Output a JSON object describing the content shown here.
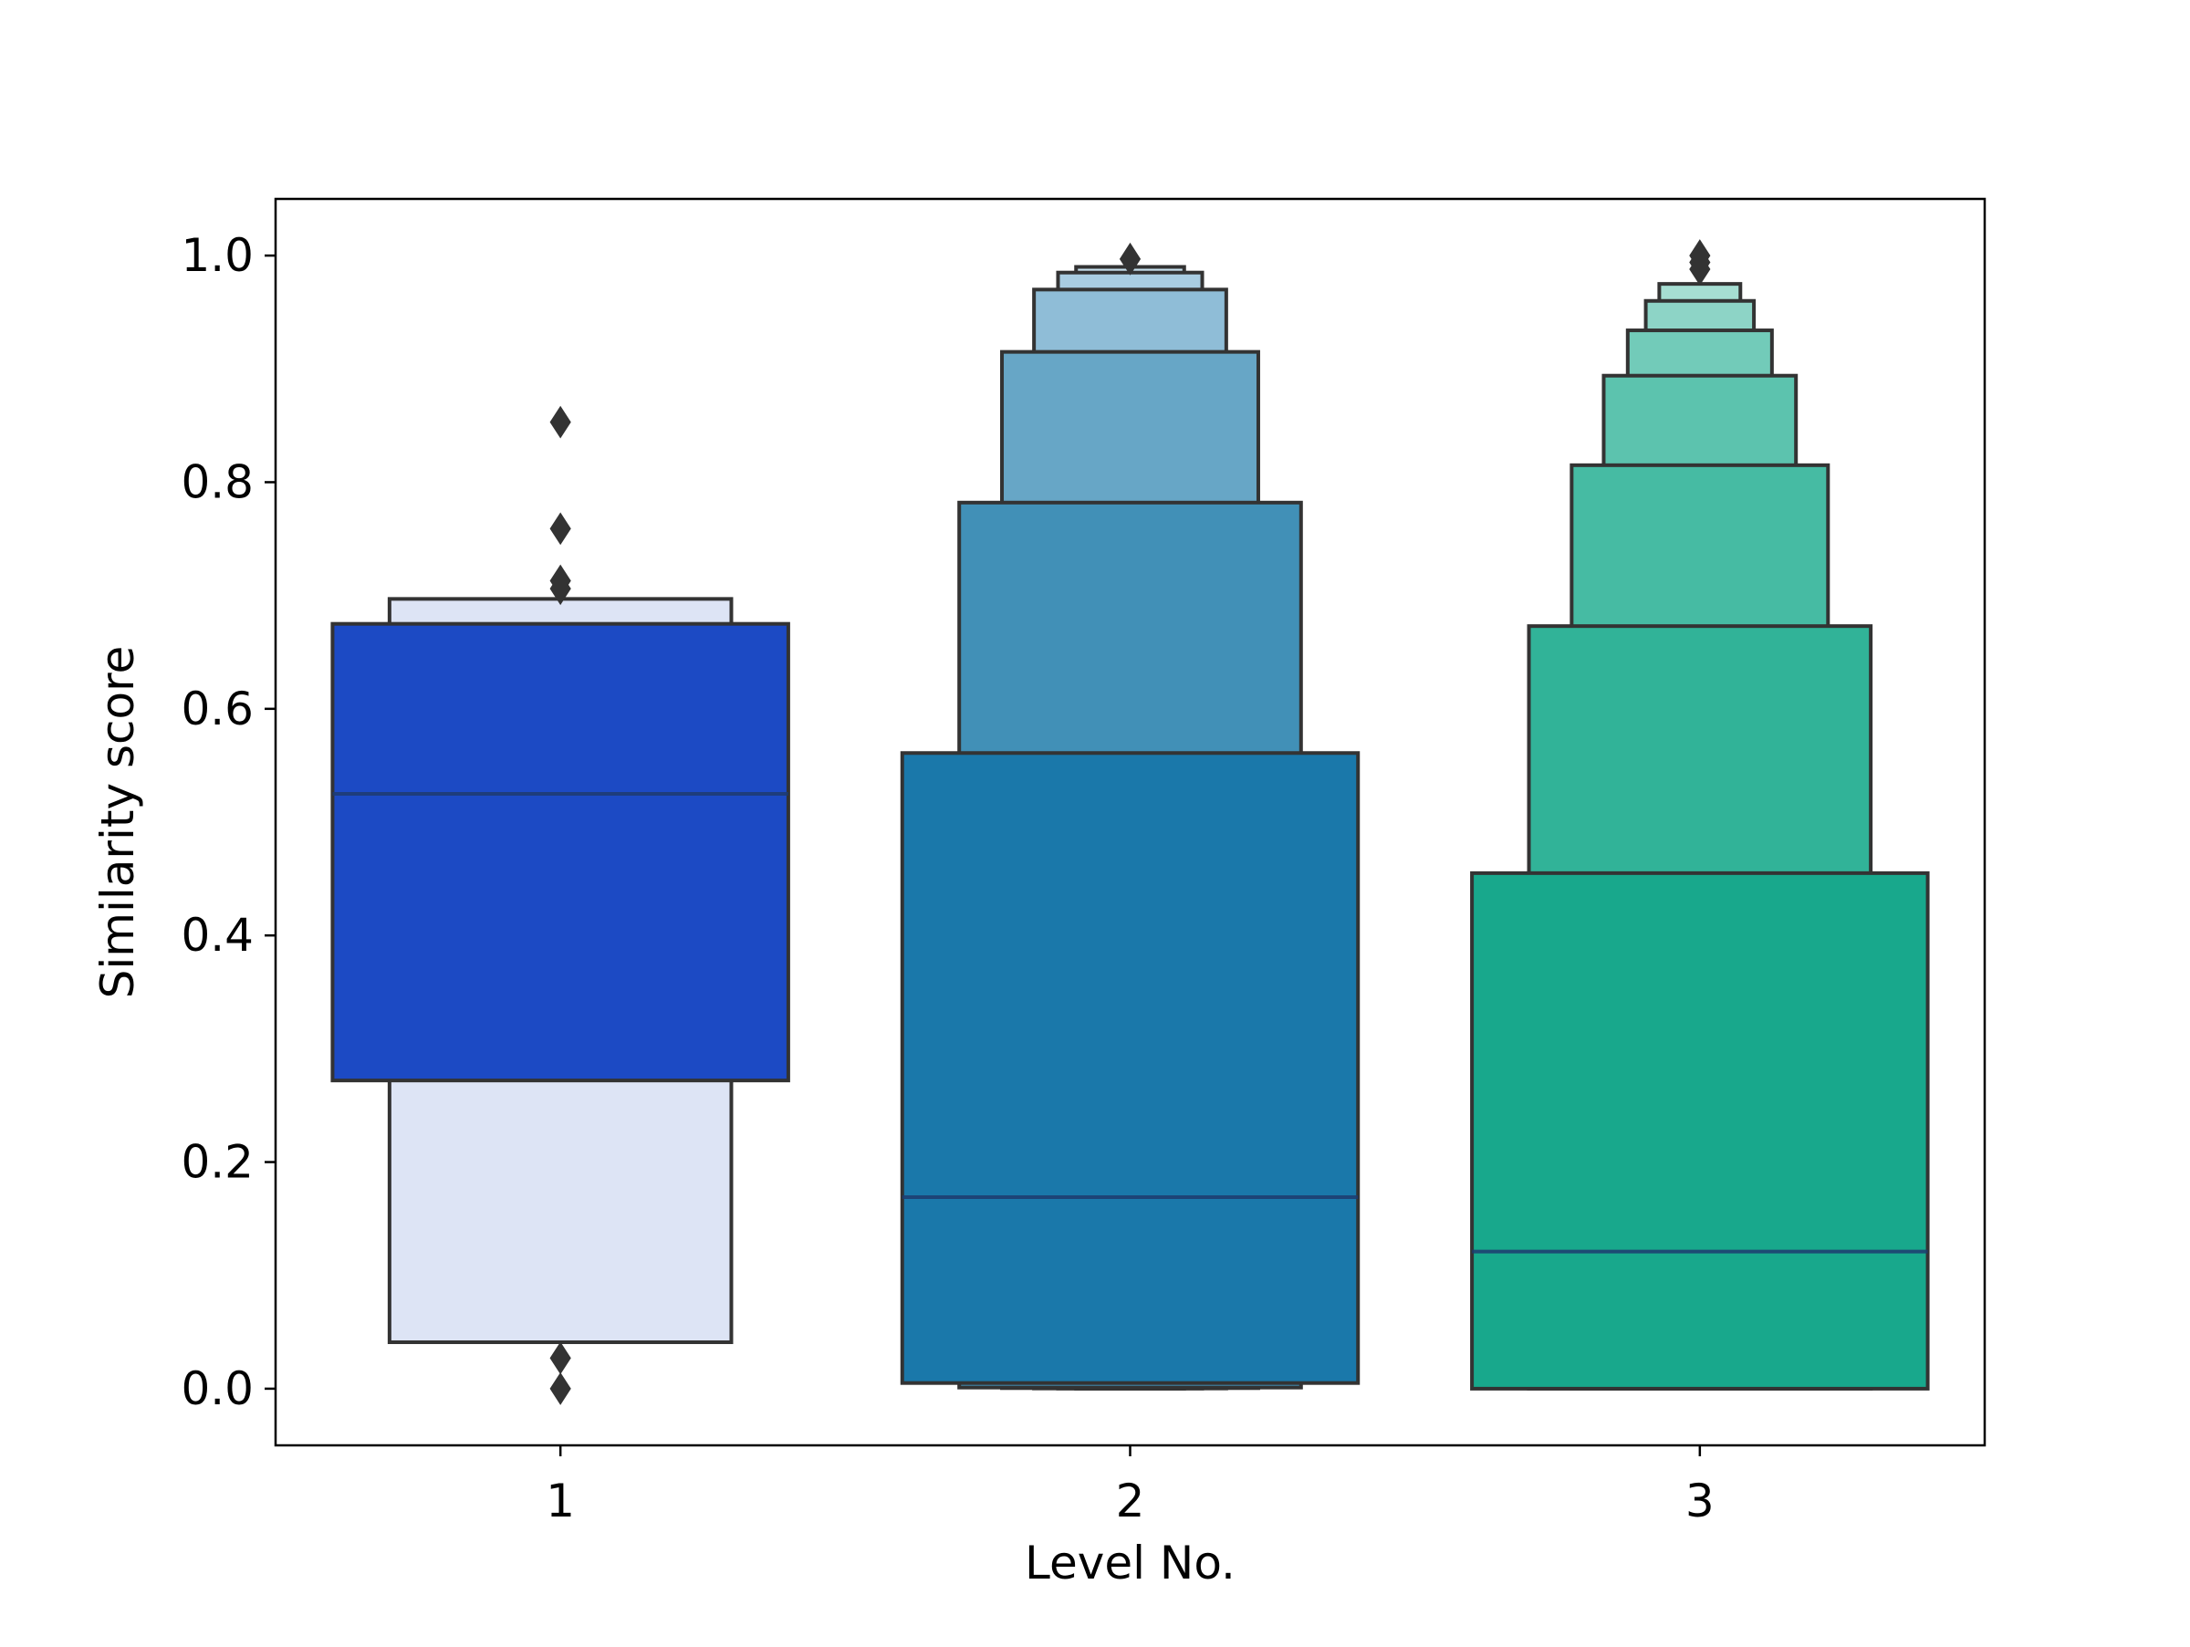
{
  "chart_data": {
    "type": "boxen",
    "title": "",
    "xlabel": "Level No.",
    "ylabel": "Similarity score",
    "categories": [
      "1",
      "2",
      "3"
    ],
    "ylim": [
      -0.05,
      1.05
    ],
    "yticks": [
      0.0,
      0.2,
      0.4,
      0.6,
      0.8,
      1.0
    ],
    "ytick_labels": [
      "0.0",
      "0.2",
      "0.4",
      "0.6",
      "0.8",
      "1.0"
    ],
    "grid": false,
    "legend": "none",
    "series": [
      {
        "category": "1",
        "color": "#1c4ac4",
        "median": 0.525,
        "boxes": [
          {
            "low": 0.272,
            "high": 0.675,
            "color": "#1c4ac4"
          },
          {
            "low": 0.041,
            "high": 0.697,
            "color": "#dde4f5"
          }
        ],
        "outliers": [
          0.853,
          0.759,
          0.713,
          0.706,
          0.027,
          0.0
        ]
      },
      {
        "category": "2",
        "color": "#1a78aa",
        "median": 0.169,
        "boxes": [
          {
            "low": 0.005,
            "high": 0.561,
            "color": "#1a78aa"
          },
          {
            "low": 0.001,
            "high": 0.782,
            "color": "#4190b7"
          },
          {
            "low": 0.0005,
            "high": 0.915,
            "color": "#67a6c6"
          },
          {
            "low": 0.0002,
            "high": 0.97,
            "color": "#8fbdd7"
          },
          {
            "low": 0.0001,
            "high": 0.985,
            "color": "#a9cde2"
          },
          {
            "low": 0.0,
            "high": 0.99,
            "color": "#c6dfec"
          }
        ],
        "outliers": [
          0.997
        ]
      },
      {
        "category": "3",
        "color": "#18a88c",
        "median": 0.121,
        "boxes": [
          {
            "low": 0.0,
            "high": 0.455,
            "color": "#18a88c"
          },
          {
            "low": 0.0,
            "high": 0.673,
            "color": "#31b398"
          },
          {
            "low": 0.0,
            "high": 0.815,
            "color": "#46bba3"
          },
          {
            "low": 0.0,
            "high": 0.894,
            "color": "#5cc3ae"
          },
          {
            "low": 0.0,
            "high": 0.934,
            "color": "#72cbb9"
          },
          {
            "low": 0.0,
            "high": 0.96,
            "color": "#8dd4c6"
          },
          {
            "low": 0.0,
            "high": 0.975,
            "color": "#a6ded2"
          }
        ],
        "outliers": [
          0.988,
          0.994,
          1.0
        ]
      }
    ]
  }
}
